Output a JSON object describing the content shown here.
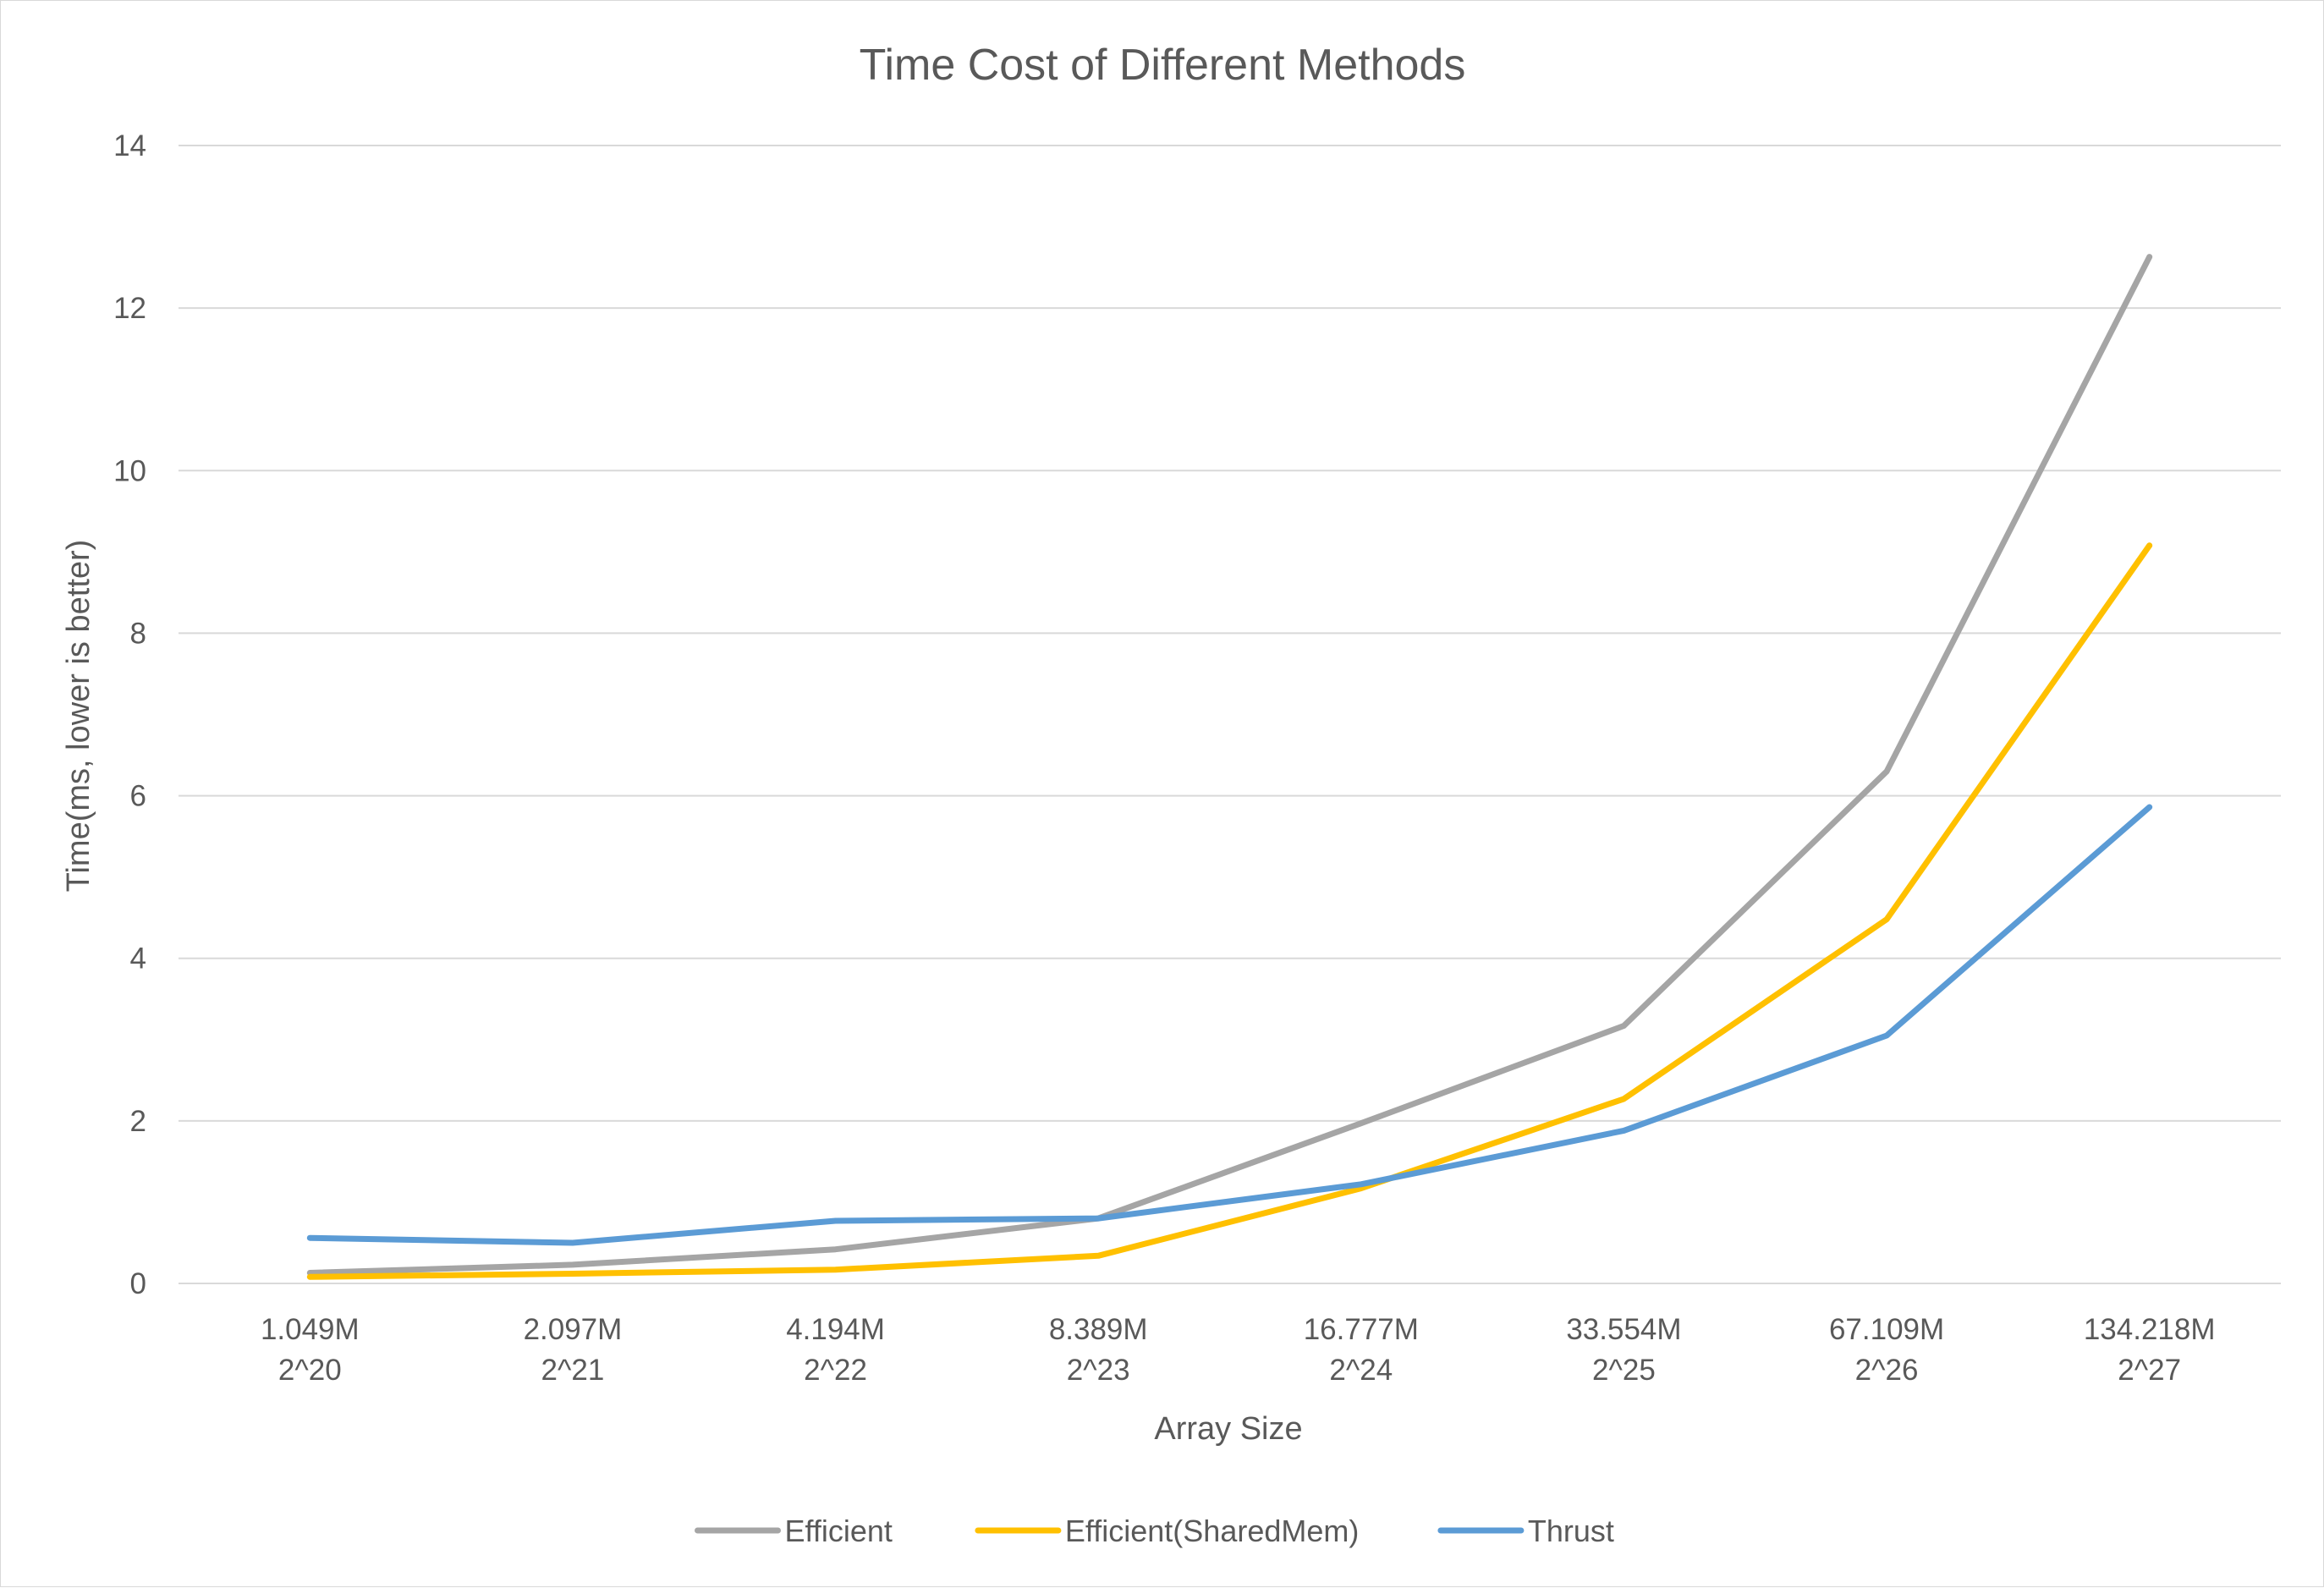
{
  "chart_data": {
    "type": "line",
    "title": "Time Cost of Different Methods",
    "xlabel": "Array Size",
    "ylabel": "Time(ms, lower is better)",
    "categories": [
      [
        "1.049M",
        "2^20"
      ],
      [
        "2.097M",
        "2^21"
      ],
      [
        "4.194M",
        "2^22"
      ],
      [
        "8.389M",
        "2^23"
      ],
      [
        "16.777M",
        "2^24"
      ],
      [
        "33.554M",
        "2^25"
      ],
      [
        "67.109M",
        "2^26"
      ],
      [
        "134.218M",
        "2^27"
      ]
    ],
    "ylim": [
      0,
      14
    ],
    "yticks": [
      0,
      2,
      4,
      6,
      8,
      10,
      12,
      14
    ],
    "grid": true,
    "legend_position": "bottom",
    "series": [
      {
        "name": "Efficient",
        "color": "#a5a5a5",
        "values": [
          0.13,
          0.23,
          0.42,
          0.8,
          1.97,
          3.17,
          6.3,
          12.63
        ]
      },
      {
        "name": "Efficient(SharedMem)",
        "color": "#ffc000",
        "values": [
          0.08,
          0.12,
          0.17,
          0.34,
          1.17,
          2.27,
          4.48,
          9.08
        ]
      },
      {
        "name": "Thrust",
        "color": "#5b9bd5",
        "values": [
          0.56,
          0.5,
          0.77,
          0.8,
          1.22,
          1.88,
          3.05,
          5.86
        ]
      }
    ]
  }
}
